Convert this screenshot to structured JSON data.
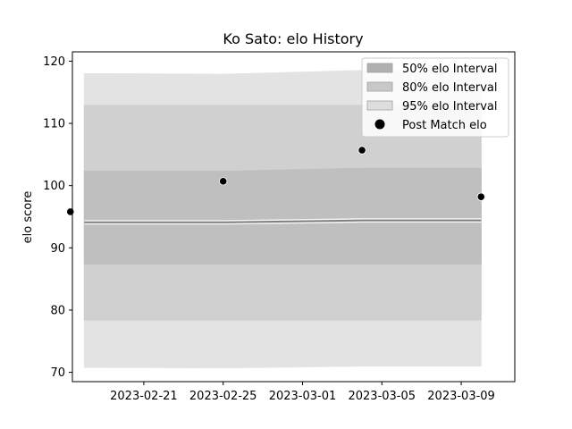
{
  "chart_data": {
    "type": "area",
    "title": "Ko Sato: elo History",
    "xlabel": "",
    "ylabel": "elo score",
    "x_ticks": [
      "2023-02-21",
      "2023-02-25",
      "2023-03-01",
      "2023-03-05",
      "2023-03-09"
    ],
    "y_ticks": [
      70,
      80,
      90,
      100,
      110,
      120
    ],
    "xlim": [
      "2023-02-17",
      "2023-03-11"
    ],
    "ylim": [
      68.5,
      121.5
    ],
    "grid": false,
    "legend_position": "top-right",
    "dates": [
      "2023-02-18",
      "2023-02-25",
      "2023-03-04",
      "2023-03-10"
    ],
    "series": [
      {
        "name": "95% elo Interval",
        "lower": [
          70.8,
          70.7,
          71.0,
          71.0
        ],
        "upper": [
          118.0,
          117.9,
          118.5,
          118.5
        ],
        "color": "#e3e3e3"
      },
      {
        "name": "80% elo Interval",
        "lower": [
          78.4,
          78.4,
          78.4,
          78.4
        ],
        "upper": [
          112.9,
          112.9,
          112.9,
          112.9
        ],
        "color": "#d0d0d0"
      },
      {
        "name": "50% elo Interval",
        "lower": [
          87.4,
          87.4,
          87.4,
          87.4
        ],
        "upper": [
          102.3,
          102.3,
          102.8,
          102.8
        ],
        "color": "#bfbfbf"
      },
      {
        "name": "Post Match elo",
        "kind": "scatter",
        "x": [
          "2023-02-17",
          "2023-02-25",
          "2023-03-04",
          "2023-03-10"
        ],
        "values": [
          95.8,
          100.7,
          105.7,
          98.2
        ],
        "color": "#000000"
      }
    ],
    "mean_line": {
      "values": [
        94.1,
        94.1,
        94.4,
        94.4
      ],
      "color": "#808080"
    },
    "legend_order": [
      "50% elo Interval",
      "80% elo Interval",
      "95% elo Interval",
      "Post Match elo"
    ],
    "legend_colors": {
      "50% elo Interval": "#b0b0b0",
      "80% elo Interval": "#c8c8c8",
      "95% elo Interval": "#dedede"
    }
  }
}
